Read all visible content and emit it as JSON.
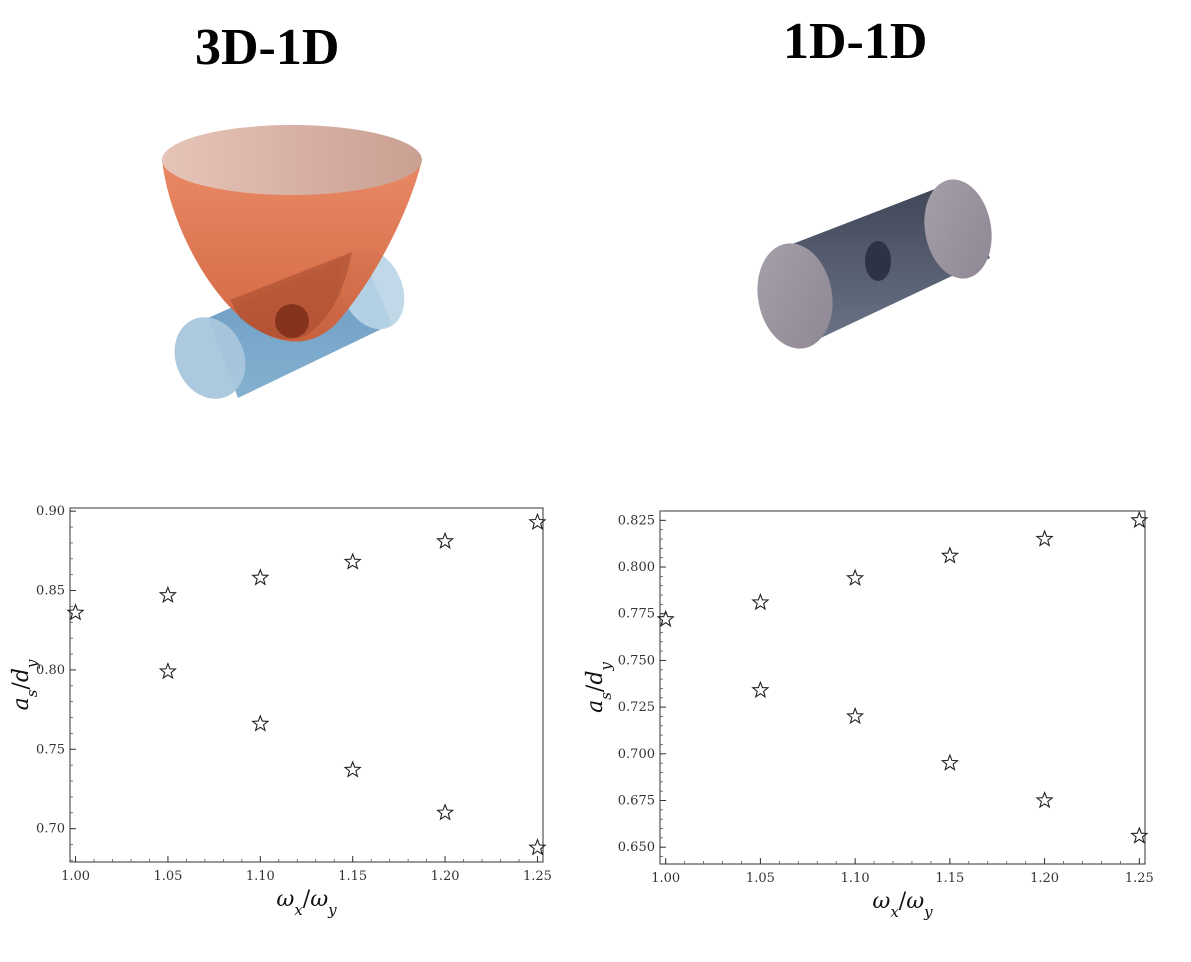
{
  "panels": [
    {
      "title": "3D-1D",
      "illustration": "paraboloid-over-cylinder"
    },
    {
      "title": "1D-1D",
      "illustration": "cylinder"
    }
  ],
  "colors": {
    "paraboloid": "#e07a54",
    "cylinder_blue": "#6fa3c8",
    "cylinder_slate": "#5b6376",
    "marker_stroke": "#222222"
  },
  "chart_data": [
    {
      "type": "scatter",
      "title": "",
      "xlabel": "ωx/ωy",
      "ylabel": "as/dy",
      "xlim": [
        0.997,
        1.253
      ],
      "ylim": [
        0.679,
        0.902
      ],
      "xticks": [
        1.0,
        1.05,
        1.1,
        1.15,
        1.2,
        1.25
      ],
      "xtick_labels": [
        "1.00",
        "1.05",
        "1.10",
        "1.15",
        "1.20",
        "1.25"
      ],
      "yticks": [
        0.7,
        0.75,
        0.8,
        0.85,
        0.9
      ],
      "ytick_labels": [
        "0.70",
        "0.75",
        "0.80",
        "0.85",
        "0.90"
      ],
      "marker": "star-open",
      "grid": false,
      "points": [
        {
          "x": 1.0,
          "y": 0.836
        },
        {
          "x": 1.05,
          "y": 0.847
        },
        {
          "x": 1.1,
          "y": 0.858
        },
        {
          "x": 1.15,
          "y": 0.868
        },
        {
          "x": 1.2,
          "y": 0.881
        },
        {
          "x": 1.25,
          "y": 0.893
        },
        {
          "x": 1.05,
          "y": 0.799
        },
        {
          "x": 1.1,
          "y": 0.766
        },
        {
          "x": 1.15,
          "y": 0.737
        },
        {
          "x": 1.2,
          "y": 0.71
        },
        {
          "x": 1.25,
          "y": 0.688
        }
      ]
    },
    {
      "type": "scatter",
      "title": "",
      "xlabel": "ωx/ωy",
      "ylabel": "as/dy",
      "xlim": [
        0.997,
        1.253
      ],
      "ylim": [
        0.641,
        0.83
      ],
      "xticks": [
        1.0,
        1.05,
        1.1,
        1.15,
        1.2,
        1.25
      ],
      "xtick_labels": [
        "1.00",
        "1.05",
        "1.10",
        "1.15",
        "1.20",
        "1.25"
      ],
      "yticks": [
        0.65,
        0.675,
        0.7,
        0.725,
        0.75,
        0.775,
        0.8,
        0.825
      ],
      "ytick_labels": [
        "0.650",
        "0.675",
        "0.700",
        "0.725",
        "0.750",
        "0.775",
        "0.800",
        "0.825"
      ],
      "marker": "star-open",
      "grid": false,
      "points": [
        {
          "x": 1.0,
          "y": 0.772
        },
        {
          "x": 1.05,
          "y": 0.781
        },
        {
          "x": 1.1,
          "y": 0.794
        },
        {
          "x": 1.15,
          "y": 0.806
        },
        {
          "x": 1.2,
          "y": 0.815
        },
        {
          "x": 1.25,
          "y": 0.825
        },
        {
          "x": 1.05,
          "y": 0.734
        },
        {
          "x": 1.1,
          "y": 0.72
        },
        {
          "x": 1.15,
          "y": 0.695
        },
        {
          "x": 1.2,
          "y": 0.675
        },
        {
          "x": 1.25,
          "y": 0.656
        }
      ]
    }
  ]
}
